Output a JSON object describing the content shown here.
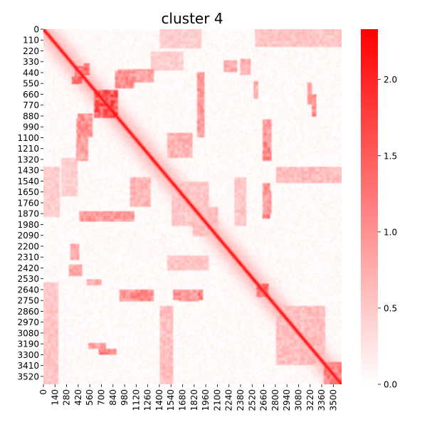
{
  "chart_data": {
    "type": "heatmap",
    "title": "cluster 4",
    "xlabel": "",
    "ylabel": "",
    "matrix_size": 3600,
    "x_tick_labels": [
      "0",
      "140",
      "280",
      "420",
      "560",
      "700",
      "840",
      "980",
      "1120",
      "1260",
      "1400",
      "1540",
      "1680",
      "1820",
      "1960",
      "2100",
      "2240",
      "2380",
      "2520",
      "2660",
      "2800",
      "2940",
      "3080",
      "3220",
      "3360",
      "3500"
    ],
    "y_tick_labels": [
      "0",
      "110",
      "220",
      "330",
      "440",
      "550",
      "660",
      "770",
      "880",
      "990",
      "1100",
      "1210",
      "1320",
      "1430",
      "1540",
      "1650",
      "1760",
      "1870",
      "1980",
      "2090",
      "2200",
      "2310",
      "2420",
      "2530",
      "2640",
      "2750",
      "2860",
      "2970",
      "3080",
      "3190",
      "3300",
      "3410",
      "3520"
    ],
    "colorbar": {
      "min": 0.0,
      "max": 2.33,
      "ticks": [
        "0.0",
        "0.5",
        "1.0",
        "1.5",
        "2.0"
      ],
      "tick_values": [
        0.0,
        0.5,
        1.0,
        1.5,
        2.0
      ],
      "low_color": "#ffffff",
      "high_color": "#ff0000"
    },
    "diagonal_value": 2.3,
    "features": [
      {
        "kind": "block",
        "r0": 620,
        "r1": 900,
        "c0": 620,
        "c1": 900,
        "value": 1.9
      },
      {
        "kind": "block",
        "r0": 380,
        "r1": 480,
        "c0": 380,
        "c1": 480,
        "value": 1.6
      },
      {
        "kind": "block",
        "r0": 2580,
        "r1": 2720,
        "c0": 2580,
        "c1": 2720,
        "value": 1.7
      },
      {
        "kind": "block",
        "r0": 3380,
        "r1": 3600,
        "c0": 3380,
        "c1": 3600,
        "value": 1.4
      },
      {
        "kind": "block",
        "r0": 1550,
        "r1": 2000,
        "c0": 1550,
        "c1": 2000,
        "value": 0.6
      },
      {
        "kind": "block",
        "r0": 420,
        "r1": 600,
        "c0": 860,
        "c1": 1100,
        "value": 1.2
      },
      {
        "kind": "block",
        "r0": 480,
        "r1": 560,
        "c0": 340,
        "c1": 460,
        "value": 1.6
      },
      {
        "kind": "block",
        "r0": 900,
        "r1": 1330,
        "c0": 400,
        "c1": 540,
        "value": 1.0
      },
      {
        "kind": "block",
        "r0": 1050,
        "r1": 1320,
        "c0": 2640,
        "c1": 2740,
        "value": 1.3
      },
      {
        "kind": "block",
        "r0": 1880,
        "r1": 1920,
        "c0": 2640,
        "c1": 2740,
        "value": 1.6
      },
      {
        "kind": "block",
        "r0": 1560,
        "r1": 1680,
        "c0": 2640,
        "c1": 2740,
        "value": 1.2
      },
      {
        "kind": "block",
        "r0": 660,
        "r1": 880,
        "c0": 3240,
        "c1": 3300,
        "value": 1.3
      },
      {
        "kind": "block",
        "r0": 2640,
        "r1": 2760,
        "c0": 920,
        "c1": 1340,
        "value": 1.1
      },
      {
        "kind": "block",
        "r0": 2640,
        "r1": 2760,
        "c0": 1640,
        "c1": 1880,
        "value": 1.0
      },
      {
        "kind": "block",
        "r0": 2540,
        "r1": 2600,
        "c0": 520,
        "c1": 700,
        "value": 0.9
      },
      {
        "kind": "block",
        "r0": 3180,
        "r1": 3240,
        "c0": 540,
        "c1": 760,
        "value": 1.0
      },
      {
        "kind": "block",
        "r0": 320,
        "r1": 440,
        "c0": 2180,
        "c1": 2340,
        "value": 0.9
      },
      {
        "kind": "block",
        "r0": 0,
        "r1": 180,
        "c0": 2560,
        "c1": 3600,
        "value": 0.6
      },
      {
        "kind": "block",
        "r0": 1400,
        "r1": 1560,
        "c0": 2800,
        "c1": 3600,
        "value": 0.7
      },
      {
        "kind": "block",
        "r0": 2800,
        "r1": 3500,
        "c0": 0,
        "c1": 160,
        "value": 0.6
      },
      {
        "kind": "block",
        "r0": 1400,
        "r1": 1900,
        "c0": 0,
        "c1": 200,
        "value": 0.5
      },
      {
        "kind": "block",
        "r0": 2900,
        "r1": 3400,
        "c0": 2800,
        "c1": 3300,
        "value": 0.7
      },
      {
        "kind": "block",
        "r0": 220,
        "r1": 420,
        "c0": 1300,
        "c1": 1700,
        "value": 0.5
      },
      {
        "kind": "block",
        "r0": 1050,
        "r1": 1300,
        "c0": 1500,
        "c1": 1800,
        "value": 0.8
      },
      {
        "kind": "block",
        "r0": 1850,
        "r1": 1950,
        "c0": 440,
        "c1": 1100,
        "value": 1.1
      },
      {
        "kind": "block",
        "r0": 2000,
        "r1": 2100,
        "c0": 1800,
        "c1": 2000,
        "value": 0.7
      },
      {
        "kind": "block",
        "r0": 2380,
        "r1": 2500,
        "c0": 300,
        "c1": 460,
        "value": 0.9
      },
      {
        "kind": "block",
        "r0": 2300,
        "r1": 2450,
        "c0": 1500,
        "c1": 2000,
        "value": 0.6
      }
    ]
  }
}
